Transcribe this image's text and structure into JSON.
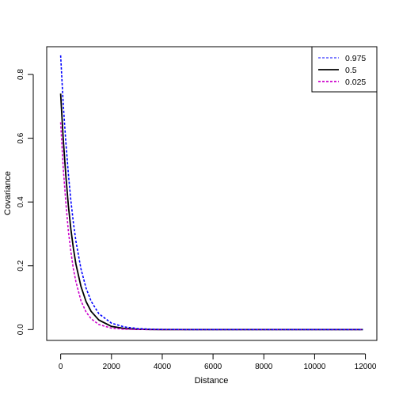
{
  "chart_data": {
    "type": "line",
    "xlabel": "Distance",
    "ylabel": "Covariance",
    "xlim": [
      -550,
      12450
    ],
    "ylim": [
      -0.034,
      0.887
    ],
    "x_ticks": [
      0,
      2000,
      4000,
      6000,
      8000,
      10000,
      12000
    ],
    "x_tick_labels": [
      "0",
      "2000",
      "4000",
      "6000",
      "8000",
      "10000",
      "12000"
    ],
    "y_ticks": [
      0.0,
      0.2,
      0.4,
      0.6,
      0.8
    ],
    "y_tick_labels": [
      "0.0",
      "0.2",
      "0.4",
      "0.6",
      "0.8"
    ],
    "legend_position": "top-right",
    "series": [
      {
        "name": "0.975",
        "color": "#0000ff",
        "style": "dashed",
        "x": [
          0,
          100,
          200,
          300,
          400,
          500,
          600,
          800,
          1000,
          1200,
          1500,
          2000,
          2500,
          3000,
          3500,
          4000,
          5000,
          6000,
          8000,
          10000,
          11900
        ],
        "y": [
          0.86,
          0.71,
          0.59,
          0.49,
          0.405,
          0.335,
          0.277,
          0.19,
          0.13,
          0.089,
          0.05,
          0.02,
          0.0085,
          0.0035,
          0.0015,
          0.0006,
          0.0001,
          0,
          0,
          0,
          0
        ]
      },
      {
        "name": "0.5",
        "color": "#000000",
        "style": "solid",
        "x": [
          0,
          100,
          200,
          300,
          400,
          500,
          600,
          800,
          1000,
          1200,
          1500,
          2000,
          2500,
          3000,
          3500,
          4000,
          5000,
          6000,
          8000,
          10000,
          11900
        ],
        "y": [
          0.74,
          0.6,
          0.485,
          0.39,
          0.315,
          0.255,
          0.205,
          0.135,
          0.088,
          0.057,
          0.03,
          0.01,
          0.0035,
          0.001,
          0.0003,
          0.0001,
          0,
          0,
          0,
          0,
          0
        ]
      },
      {
        "name": "0.025",
        "color": "#cc00cc",
        "style": "dashed",
        "x": [
          0,
          100,
          200,
          300,
          400,
          500,
          600,
          800,
          1000,
          1200,
          1500,
          2000,
          2500,
          3000,
          3500,
          4000,
          5000,
          6000,
          8000,
          10000,
          11900
        ],
        "y": [
          0.65,
          0.51,
          0.4,
          0.31,
          0.245,
          0.19,
          0.15,
          0.09,
          0.055,
          0.034,
          0.016,
          0.0045,
          0.0012,
          0.0003,
          0.0001,
          0,
          0,
          0,
          0,
          0,
          0
        ]
      }
    ]
  }
}
